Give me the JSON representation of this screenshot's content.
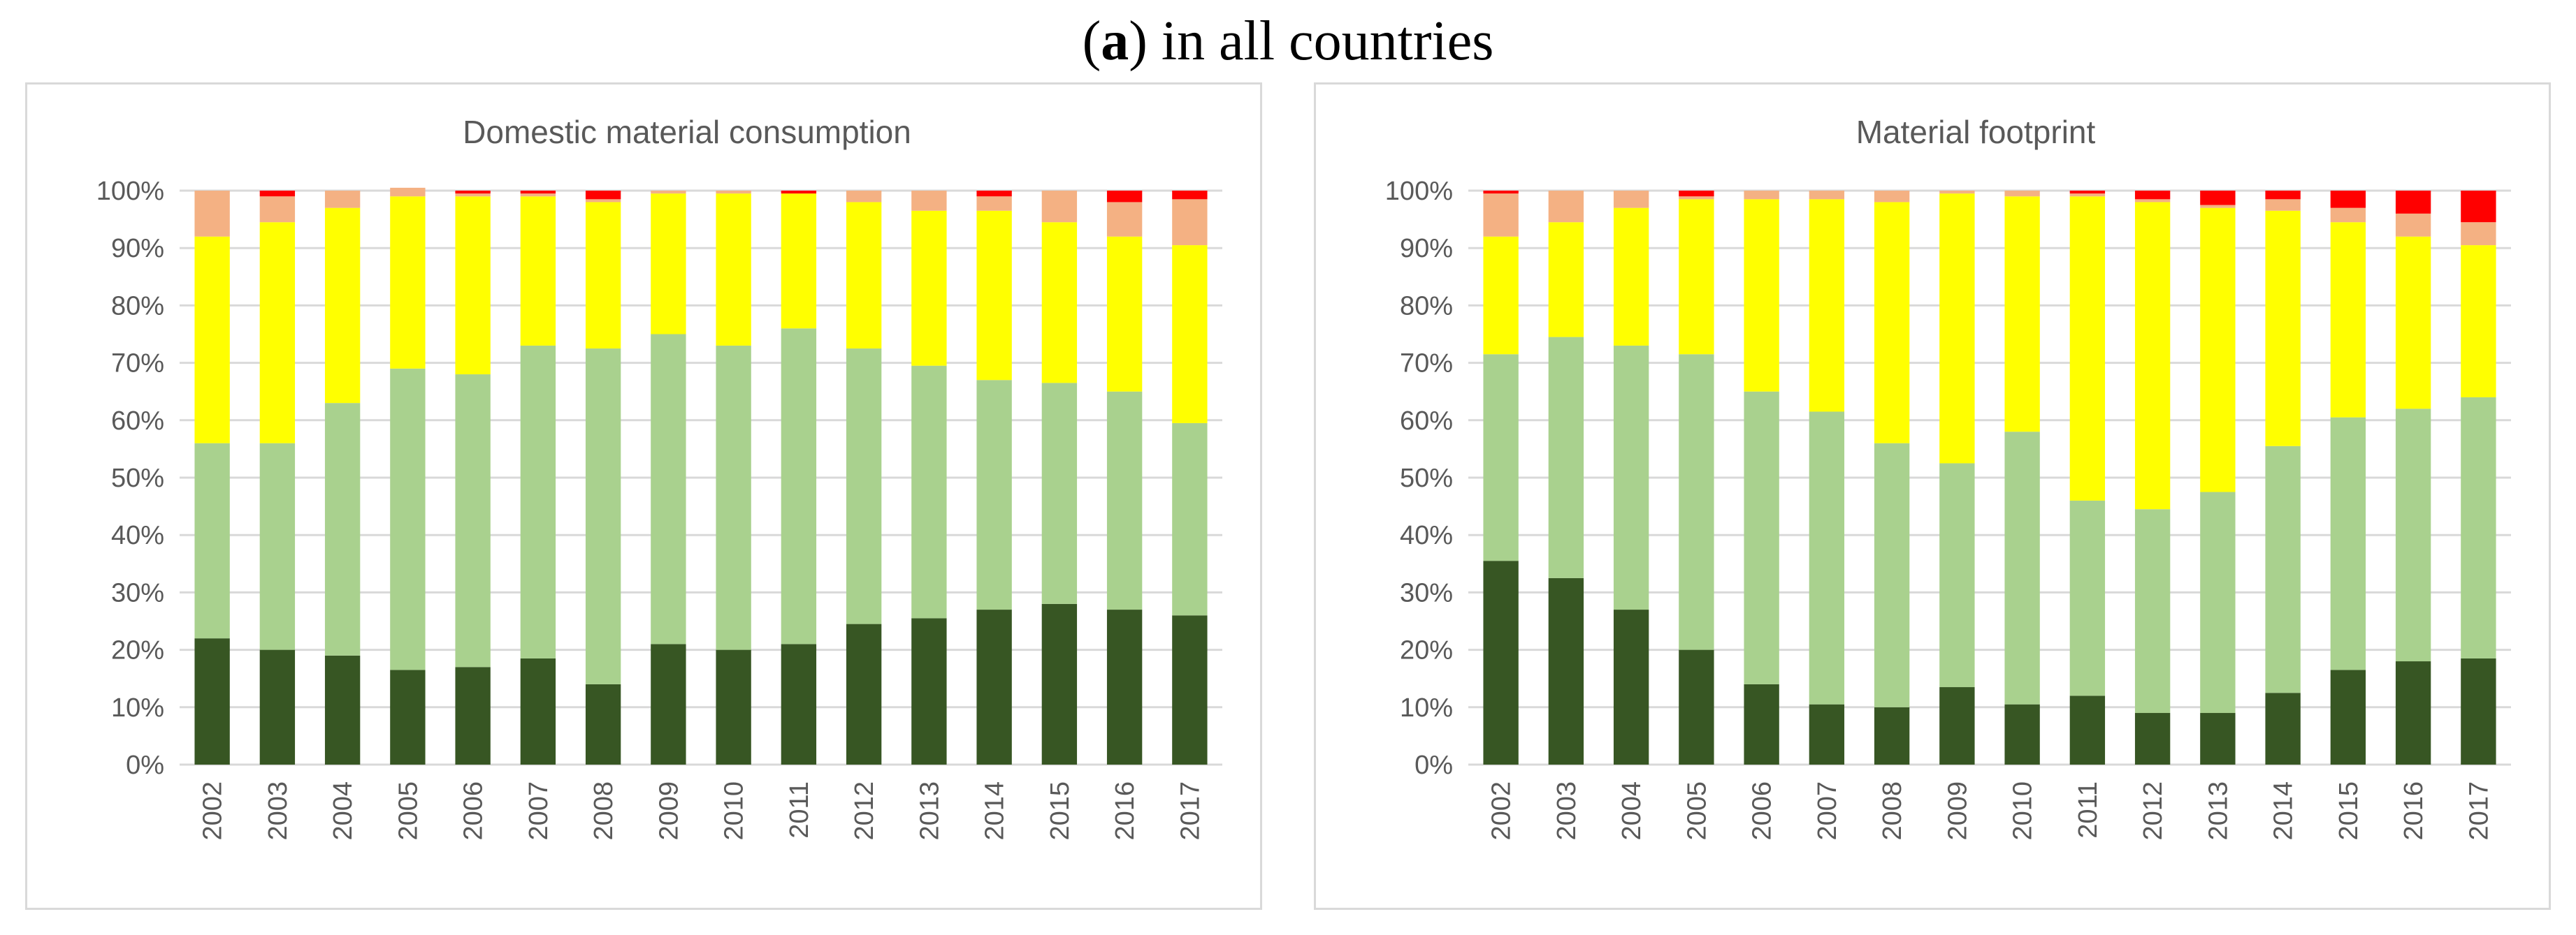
{
  "figure": {
    "label": "a",
    "title": "in all countries"
  },
  "colors": {
    "series": [
      "#375623",
      "#a9d18e",
      "#ffff00",
      "#f4b183",
      "#ff0000"
    ],
    "grid": "#d9d9d9",
    "text": "#595959",
    "border": "#d9d9d9"
  },
  "chart_data": [
    {
      "type": "stacked-bar",
      "title": "Domestic material consumption",
      "categories": [
        "2002",
        "2003",
        "2004",
        "2005",
        "2006",
        "2007",
        "2008",
        "2009",
        "2010",
        "2011",
        "2012",
        "2013",
        "2014",
        "2015",
        "2016",
        "2017"
      ],
      "ylim": [
        0,
        100
      ],
      "yticks": [
        "0%",
        "10%",
        "20%",
        "30%",
        "40%",
        "50%",
        "60%",
        "70%",
        "80%",
        "90%",
        "100%"
      ],
      "xlabel": "",
      "ylabel": "",
      "legend": "none",
      "series": [
        {
          "values": [
            22,
            20,
            19,
            16.5,
            17,
            18.5,
            14,
            21,
            20,
            21,
            24.5,
            25.5,
            27,
            28,
            27,
            26
          ]
        },
        {
          "values": [
            34,
            36,
            44,
            52.5,
            51,
            54.5,
            58.5,
            54,
            53,
            55,
            48,
            44,
            40,
            38.5,
            38,
            33.5
          ]
        },
        {
          "values": [
            36,
            38.5,
            34,
            30,
            31,
            26,
            25.5,
            24.5,
            26.5,
            23.5,
            25.5,
            27,
            29.5,
            28,
            27,
            31
          ]
        },
        {
          "values": [
            8,
            4.5,
            3,
            1.5,
            0.5,
            0.5,
            0.5,
            0.5,
            0.5,
            0,
            2,
            3.5,
            2.5,
            5.5,
            6,
            8
          ]
        },
        {
          "values": [
            0,
            1,
            0,
            0,
            0.5,
            0.5,
            1.5,
            0,
            0,
            0.5,
            0,
            0,
            1,
            0,
            2,
            1.5
          ]
        }
      ]
    },
    {
      "type": "stacked-bar",
      "title": "Material footprint",
      "categories": [
        "2002",
        "2003",
        "2004",
        "2005",
        "2006",
        "2007",
        "2008",
        "2009",
        "2010",
        "2011",
        "2012",
        "2013",
        "2014",
        "2015",
        "2016",
        "2017"
      ],
      "ylim": [
        0,
        100
      ],
      "yticks": [
        "0%",
        "10%",
        "20%",
        "30%",
        "40%",
        "50%",
        "60%",
        "70%",
        "80%",
        "90%",
        "100%"
      ],
      "xlabel": "",
      "ylabel": "",
      "legend": "none",
      "series": [
        {
          "values": [
            35.5,
            32.5,
            27,
            20,
            14,
            10.5,
            10,
            13.5,
            10.5,
            12,
            9,
            9,
            12.5,
            16.5,
            18,
            18.5
          ]
        },
        {
          "values": [
            36,
            42,
            46,
            51.5,
            51,
            51,
            46,
            39,
            47.5,
            34,
            35.5,
            38.5,
            43,
            44,
            44,
            45.5
          ]
        },
        {
          "values": [
            20.5,
            20,
            24,
            27,
            33.5,
            37,
            42,
            47,
            41,
            53,
            53.5,
            49.5,
            41,
            34,
            30,
            26.5
          ]
        },
        {
          "values": [
            7.5,
            5.5,
            3,
            0.5,
            1.5,
            1.5,
            2,
            0.5,
            1,
            0.5,
            0.5,
            0.5,
            2,
            2.5,
            4,
            4
          ]
        },
        {
          "values": [
            0.5,
            0,
            0,
            1,
            0,
            0,
            0,
            0,
            0,
            0.5,
            1.5,
            2.5,
            1.5,
            3,
            4,
            5.5
          ]
        }
      ]
    }
  ]
}
